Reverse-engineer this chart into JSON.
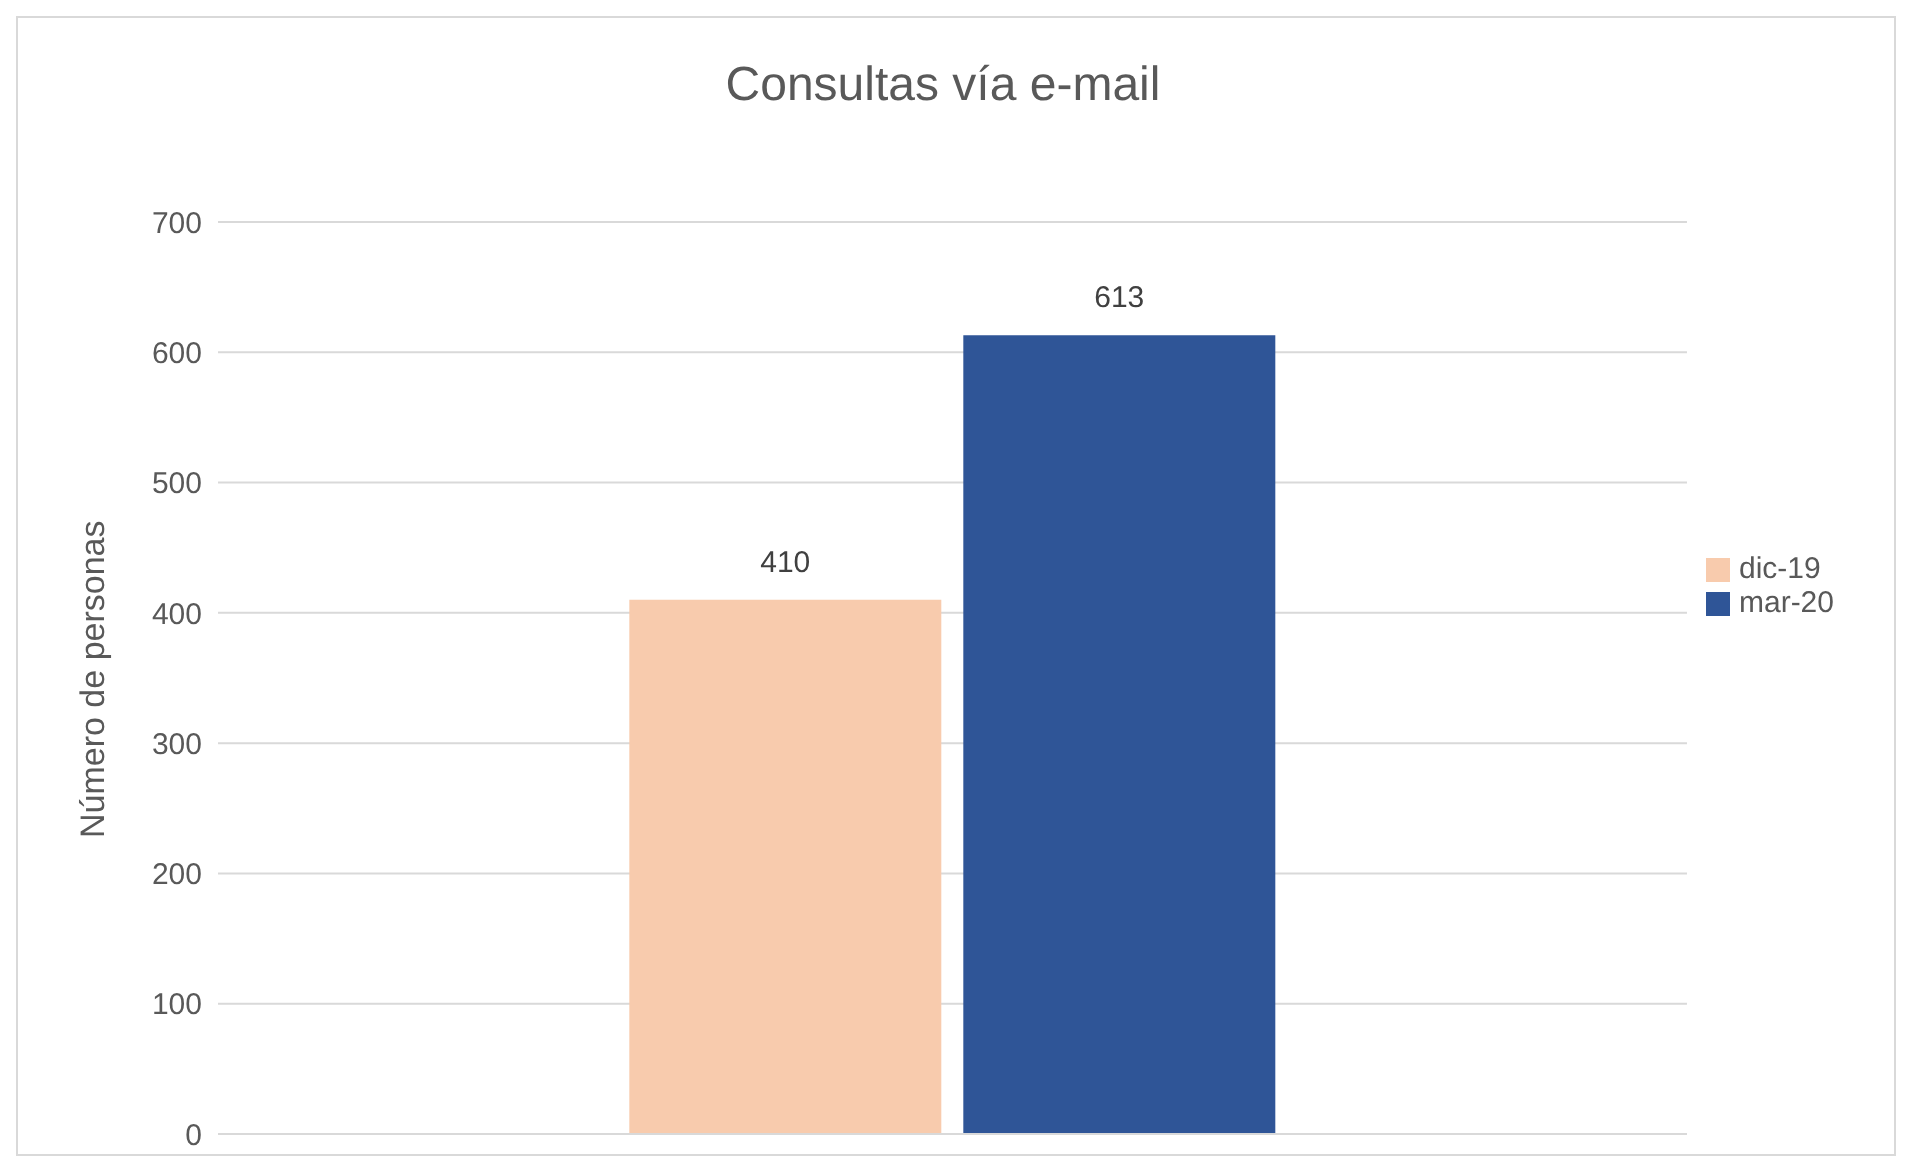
{
  "chart_data": {
    "type": "bar",
    "title": "Consultas vía e-mail",
    "ylabel": "Número de personas",
    "categories": [
      null
    ],
    "series": [
      {
        "name": "dic-19",
        "color": "#f8cbad",
        "values": [
          410
        ]
      },
      {
        "name": "mar-20",
        "color": "#2f5597",
        "values": [
          613
        ]
      }
    ],
    "ylim": [
      0,
      700
    ],
    "yticks": [
      0,
      100,
      200,
      300,
      400,
      500,
      600,
      700
    ],
    "grid": "y",
    "legend": "right",
    "data_labels": true
  }
}
